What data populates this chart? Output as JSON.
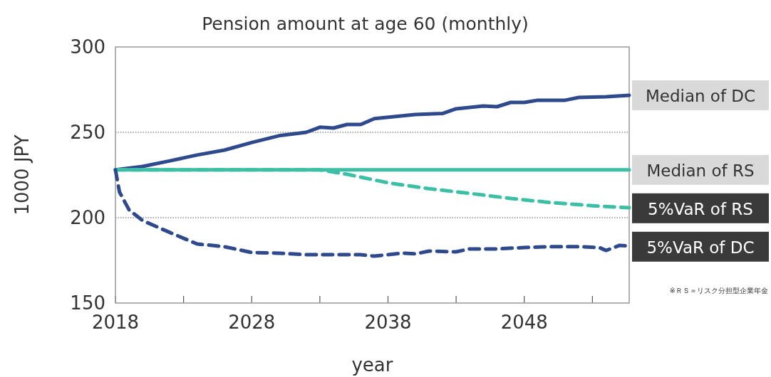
{
  "chart_data": {
    "type": "line",
    "title": "Pension amount at age 60 (monthly)",
    "xlabel": "year",
    "ylabel": "1000 JPY",
    "xlim": [
      2018,
      2055.7
    ],
    "xticks": [
      2018,
      {
        "value": 2023,
        "label": null
      },
      2028,
      {
        "value": 2033,
        "label": null
      },
      2038,
      {
        "value": 2043,
        "label": null
      },
      2048,
      {
        "value": 2053,
        "label": null
      }
    ],
    "ylim": [
      150,
      300
    ],
    "yticks": [
      150,
      200,
      250,
      300
    ],
    "grid": "y",
    "marker": "none",
    "annotations": [
      "※ＲＳ＝リスク分担型企業年金"
    ],
    "series": [
      {
        "name": "Median of DC",
        "color": "#2e4a8c",
        "line_style": "solid",
        "x": [
          2018,
          2020,
          2022,
          2024,
          2026,
          2028,
          2030,
          2032,
          2033,
          2034,
          2035,
          2036,
          2037,
          2040,
          2042,
          2043,
          2045,
          2046,
          2047,
          2048,
          2049,
          2051,
          2052,
          2054,
          2055.7
        ],
        "values": [
          228,
          230,
          233.3,
          236.7,
          239.6,
          244,
          248,
          250,
          253,
          252.5,
          254.6,
          254.6,
          258,
          260.4,
          261,
          263.8,
          265.4,
          265,
          267.5,
          267.5,
          268.8,
          268.8,
          270.4,
          270.8,
          271.7
        ]
      },
      {
        "name": "Median of RS",
        "color": "#3cbfa5",
        "line_style": "solid",
        "x": [
          2018,
          2055.7
        ],
        "values": [
          228,
          228
        ]
      },
      {
        "name": "5%VaR of RS",
        "color": "#3cbfa5",
        "line_style": "dashed",
        "x": [
          2018,
          2033,
          2035,
          2038,
          2041,
          2044,
          2047,
          2050,
          2053,
          2055.7
        ],
        "values": [
          228,
          228,
          225.4,
          220.4,
          217,
          214.2,
          211.3,
          208.8,
          207,
          205.8
        ]
      },
      {
        "name": "5%VaR of DC",
        "color": "#2e4a8c",
        "line_style": "dashed",
        "x": [
          2018,
          2018.3,
          2019,
          2020,
          2022,
          2024,
          2026,
          2028,
          2030,
          2032,
          2034,
          2036,
          2037,
          2039,
          2040,
          2041,
          2043,
          2044,
          2046,
          2048,
          2050,
          2052,
          2053.5,
          2054,
          2055,
          2055.7
        ],
        "values": [
          228,
          215,
          204.6,
          198.3,
          191.3,
          184.6,
          183,
          179.6,
          179.2,
          178.3,
          178.3,
          178.3,
          177.5,
          179.2,
          178.8,
          180.4,
          180,
          181.7,
          181.7,
          182.5,
          183,
          183,
          182.5,
          180.8,
          183.8,
          183.3
        ]
      }
    ]
  }
}
